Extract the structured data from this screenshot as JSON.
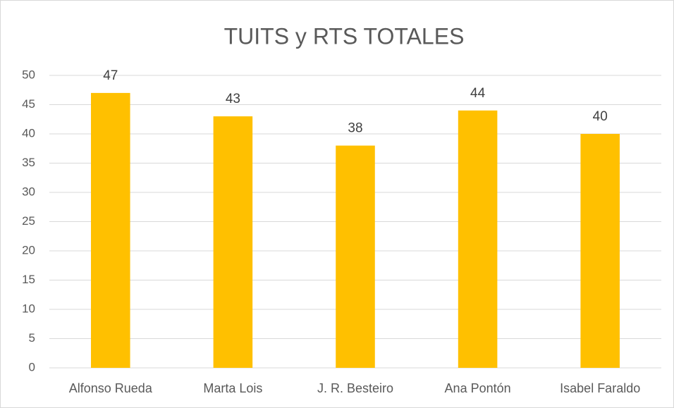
{
  "chart_data": {
    "type": "bar",
    "title": "TUITS y RTS TOTALES",
    "categories": [
      "Alfonso Rueda",
      "Marta Lois",
      "J. R. Besteiro",
      "Ana Pontón",
      "Isabel Faraldo"
    ],
    "values": [
      47,
      43,
      38,
      44,
      40
    ],
    "color": "#ffc000",
    "ylim": [
      0,
      50
    ],
    "yticks": [
      0,
      5,
      10,
      15,
      20,
      25,
      30,
      35,
      40,
      45,
      50
    ],
    "grid": true
  }
}
